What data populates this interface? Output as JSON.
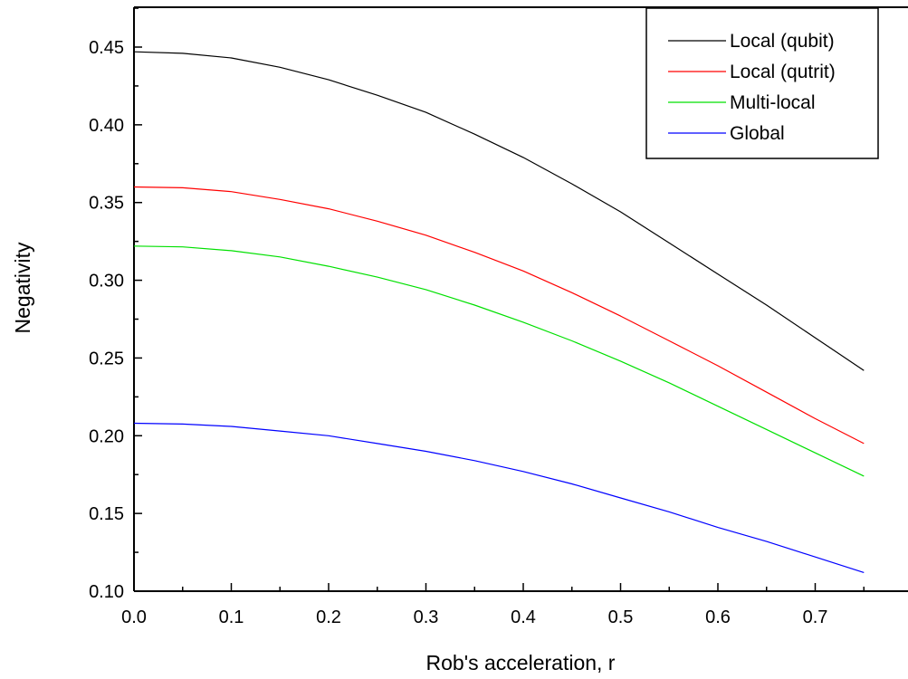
{
  "chart_data": {
    "type": "line",
    "xlabel": "Rob's acceleration, r",
    "ylabel": "Negativity",
    "xlim": [
      0.0,
      0.75
    ],
    "ylim": [
      0.1,
      0.475
    ],
    "x_ticks": [
      "0.0",
      "0.1",
      "0.2",
      "0.3",
      "0.4",
      "0.5",
      "0.6",
      "0.7"
    ],
    "y_ticks": [
      "0.10",
      "0.15",
      "0.20",
      "0.25",
      "0.30",
      "0.35",
      "0.40",
      "0.45"
    ],
    "grid": false,
    "legend_position": "top-right",
    "x": [
      0.0,
      0.05,
      0.1,
      0.15,
      0.2,
      0.25,
      0.3,
      0.35,
      0.4,
      0.45,
      0.5,
      0.55,
      0.6,
      0.65,
      0.7,
      0.75
    ],
    "series": [
      {
        "name": "Local (qubit)",
        "color": "#000000",
        "values": [
          0.447,
          0.446,
          0.443,
          0.437,
          0.429,
          0.419,
          0.408,
          0.394,
          0.379,
          0.362,
          0.344,
          0.324,
          0.304,
          0.284,
          0.263,
          0.242
        ]
      },
      {
        "name": "Local (qutrit)",
        "color": "#ff0000",
        "values": [
          0.36,
          0.3595,
          0.357,
          0.352,
          0.346,
          0.338,
          0.329,
          0.318,
          0.306,
          0.292,
          0.277,
          0.261,
          0.245,
          0.228,
          0.211,
          0.195
        ]
      },
      {
        "name": "Multi-local",
        "color": "#00e000",
        "values": [
          0.322,
          0.3215,
          0.319,
          0.315,
          0.309,
          0.302,
          0.294,
          0.284,
          0.273,
          0.261,
          0.248,
          0.234,
          0.219,
          0.204,
          0.189,
          0.174
        ]
      },
      {
        "name": "Global",
        "color": "#0000ff",
        "values": [
          0.208,
          0.2075,
          0.206,
          0.203,
          0.2,
          0.195,
          0.19,
          0.184,
          0.177,
          0.169,
          0.16,
          0.151,
          0.141,
          0.132,
          0.122,
          0.112
        ]
      }
    ]
  }
}
